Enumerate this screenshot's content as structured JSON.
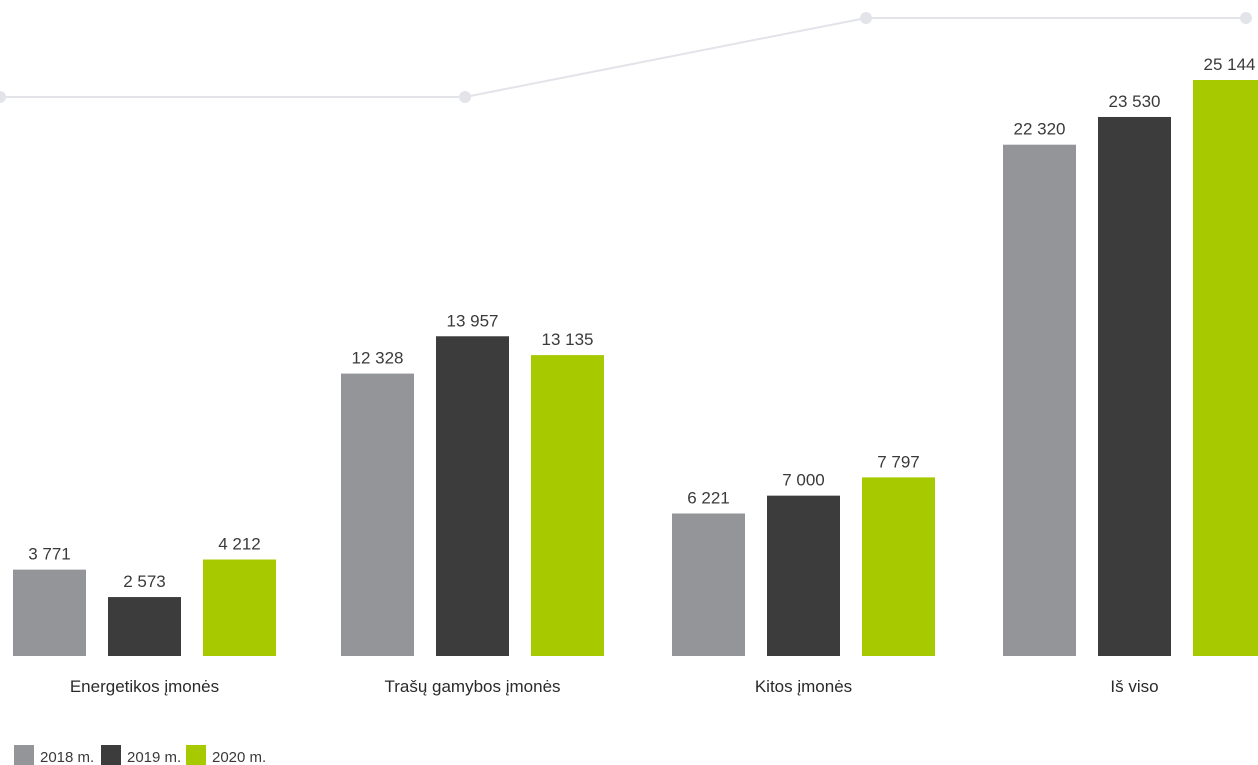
{
  "chart_data": {
    "type": "bar",
    "categories": [
      "Energetikos įmonės",
      "Trašų gamybos įmonės",
      "Kitos įmonės",
      "Iš viso"
    ],
    "series": [
      {
        "name": "2018 m.",
        "color": "#949599",
        "values": [
          3771,
          12328,
          6221,
          22320
        ],
        "labels": [
          "3 771",
          "12 328",
          "6 221",
          "22 320"
        ]
      },
      {
        "name": "2019 m.",
        "color": "#3c3c3c",
        "values": [
          2573,
          13957,
          7000,
          23530
        ],
        "labels": [
          "2 573",
          "13 957",
          "7 000",
          "23 530"
        ]
      },
      {
        "name": "2020 m.",
        "color": "#a6c900",
        "values": [
          4212,
          13135,
          7797,
          25144
        ],
        "labels": [
          "4 212",
          "13 135",
          "7 797",
          "25 144"
        ]
      }
    ],
    "legend_position": "bottom-left",
    "grid": false,
    "decorative_line_color": "#e3e4ea"
  }
}
